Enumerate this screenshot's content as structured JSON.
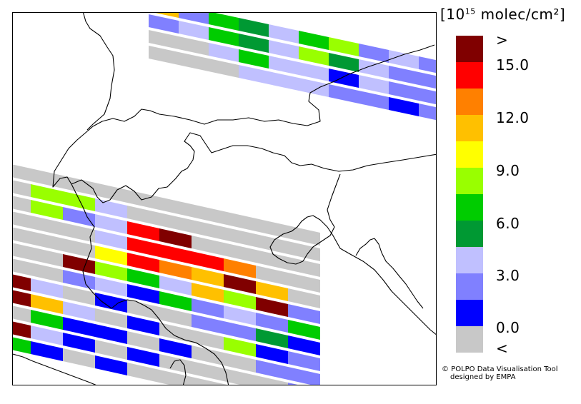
{
  "legend": {
    "title_prefix": "[10",
    "title_exponent": "15",
    "title_suffix": " molec/cm²]",
    "colors": [
      "#800000",
      "#ff0000",
      "#ff8000",
      "#ffc000",
      "#ffff00",
      "#99ff00",
      "#00cc00",
      "#009933",
      "#c0c0ff",
      "#8080ff",
      "#0000ff",
      "#c8c8c8"
    ],
    "labels": [
      ">",
      "15.0",
      "12.0",
      "9.0",
      "6.0",
      "3.0",
      "0.0",
      "<"
    ]
  },
  "credits": {
    "line1": "© POLPO Data Visualisation Tool",
    "line2": "designed by EMPA"
  },
  "colors": {
    "border": "#000000",
    "gap": "#ffffff"
  }
}
